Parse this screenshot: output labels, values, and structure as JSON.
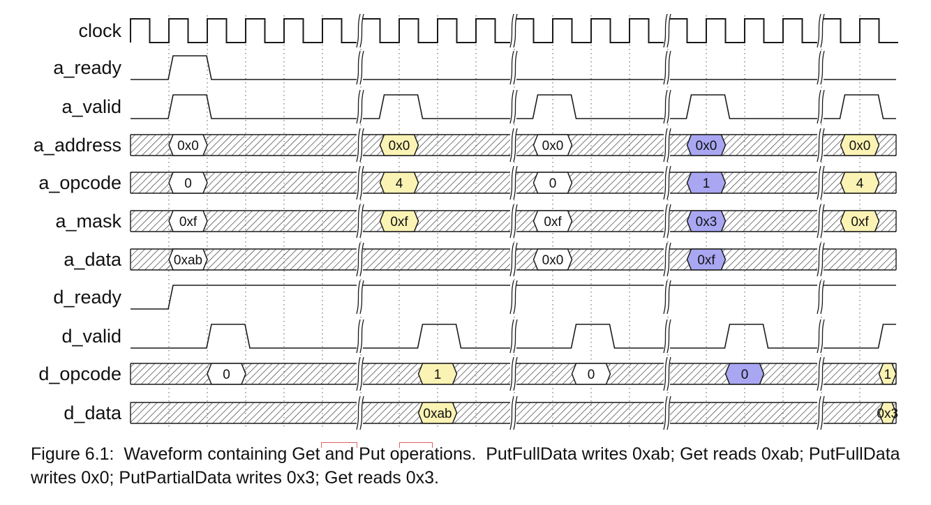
{
  "colors": {
    "yellow": "#fbf3b4",
    "blue": "#a9a7f2",
    "white": "#ffffff",
    "line": "#1a1a1a",
    "hatch": "#555555"
  },
  "signals": [
    {
      "name": "clock",
      "kind": "clock"
    },
    {
      "name": "a_ready",
      "kind": "bit",
      "segments": [
        {
          "from": 0,
          "to": 6,
          "high": [
            [
              1,
              2
            ]
          ]
        },
        {
          "from": 6,
          "to": 10,
          "high": []
        },
        {
          "from": 10,
          "to": 14,
          "high": []
        },
        {
          "from": 14,
          "to": 18,
          "high": []
        },
        {
          "from": 18,
          "to": 20,
          "high": []
        }
      ]
    },
    {
      "name": "a_valid",
      "kind": "bit",
      "segments": [
        {
          "from": 0,
          "to": 6,
          "high": [
            [
              1,
              2
            ]
          ]
        },
        {
          "from": 6,
          "to": 10,
          "high": [
            [
              6.5,
              7.5
            ]
          ]
        },
        {
          "from": 10,
          "to": 14,
          "high": [
            [
              10.5,
              11.5
            ]
          ]
        },
        {
          "from": 14,
          "to": 18,
          "high": [
            [
              14.5,
              15.5
            ]
          ]
        },
        {
          "from": 18,
          "to": 20,
          "high": [
            [
              18.5,
              19.5
            ]
          ]
        }
      ]
    },
    {
      "name": "a_address",
      "kind": "bus",
      "values": [
        {
          "start": 1,
          "end": 2,
          "label": "0x0",
          "color": "white"
        },
        {
          "start": 6.5,
          "end": 7.5,
          "label": "0x0",
          "color": "yellow"
        },
        {
          "start": 10.5,
          "end": 11.5,
          "label": "0x0",
          "color": "white"
        },
        {
          "start": 14.5,
          "end": 15.5,
          "label": "0x0",
          "color": "blue"
        },
        {
          "start": 18.5,
          "end": 19.5,
          "label": "0x0",
          "color": "yellow"
        }
      ]
    },
    {
      "name": "a_opcode",
      "kind": "bus",
      "values": [
        {
          "start": 1,
          "end": 2,
          "label": "0",
          "color": "white"
        },
        {
          "start": 6.5,
          "end": 7.5,
          "label": "4",
          "color": "yellow"
        },
        {
          "start": 10.5,
          "end": 11.5,
          "label": "0",
          "color": "white"
        },
        {
          "start": 14.5,
          "end": 15.5,
          "label": "1",
          "color": "blue"
        },
        {
          "start": 18.5,
          "end": 19.5,
          "label": "4",
          "color": "yellow"
        }
      ]
    },
    {
      "name": "a_mask",
      "kind": "bus",
      "values": [
        {
          "start": 1,
          "end": 2,
          "label": "0xf",
          "color": "white"
        },
        {
          "start": 6.5,
          "end": 7.5,
          "label": "0xf",
          "color": "yellow"
        },
        {
          "start": 10.5,
          "end": 11.5,
          "label": "0xf",
          "color": "white"
        },
        {
          "start": 14.5,
          "end": 15.5,
          "label": "0x3",
          "color": "blue"
        },
        {
          "start": 18.5,
          "end": 19.5,
          "label": "0xf",
          "color": "yellow"
        }
      ]
    },
    {
      "name": "a_data",
      "kind": "bus",
      "values": [
        {
          "start": 1,
          "end": 2,
          "label": "0xab",
          "color": "white"
        },
        {
          "start": 10.5,
          "end": 11.5,
          "label": "0x0",
          "color": "white"
        },
        {
          "start": 14.5,
          "end": 15.5,
          "label": "0xf",
          "color": "blue"
        }
      ]
    },
    {
      "name": "d_ready",
      "kind": "bit",
      "segments": [
        {
          "from": 0,
          "to": 6,
          "high": [
            [
              1,
              6
            ]
          ]
        },
        {
          "from": 6,
          "to": 10,
          "high": [
            [
              6,
              10
            ]
          ]
        },
        {
          "from": 10,
          "to": 14,
          "high": [
            [
              10,
              14
            ]
          ]
        },
        {
          "from": 14,
          "to": 20,
          "high": [
            [
              14,
              20
            ]
          ]
        }
      ]
    },
    {
      "name": "d_valid",
      "kind": "bit",
      "segments": [
        {
          "from": 0,
          "to": 6,
          "high": [
            [
              2,
              3
            ]
          ]
        },
        {
          "from": 6,
          "to": 10,
          "high": [
            [
              7.5,
              8.5
            ]
          ]
        },
        {
          "from": 10,
          "to": 14,
          "high": [
            [
              11.5,
              12.5
            ]
          ]
        },
        {
          "from": 14,
          "to": 18,
          "high": [
            [
              15.5,
              16.5
            ]
          ]
        },
        {
          "from": 18,
          "to": 20,
          "high": [
            [
              19.5,
              20.5
            ]
          ]
        }
      ]
    },
    {
      "name": "d_opcode",
      "kind": "bus",
      "values": [
        {
          "start": 2,
          "end": 3,
          "label": "0",
          "color": "white"
        },
        {
          "start": 7.5,
          "end": 8.5,
          "label": "1",
          "color": "yellow"
        },
        {
          "start": 11.5,
          "end": 12.5,
          "label": "0",
          "color": "white"
        },
        {
          "start": 15.5,
          "end": 16.5,
          "label": "0",
          "color": "blue"
        },
        {
          "start": 19.5,
          "end": 20.5,
          "label": "1",
          "color": "yellow"
        }
      ]
    },
    {
      "name": "d_data",
      "kind": "bus",
      "values": [
        {
          "start": 7.5,
          "end": 8.5,
          "label": "0xab",
          "color": "yellow"
        },
        {
          "start": 19.5,
          "end": 20.5,
          "label": "0x3",
          "color": "yellow"
        }
      ]
    }
  ],
  "caption": {
    "prefix": "Figure 6.1:",
    "text": "  Waveform containing Get and Put operations.  PutFullData writes 0xab; Get reads 0xab; PutFullData writes 0x0; PutPartialData writes 0x3; Get reads 0x3."
  }
}
